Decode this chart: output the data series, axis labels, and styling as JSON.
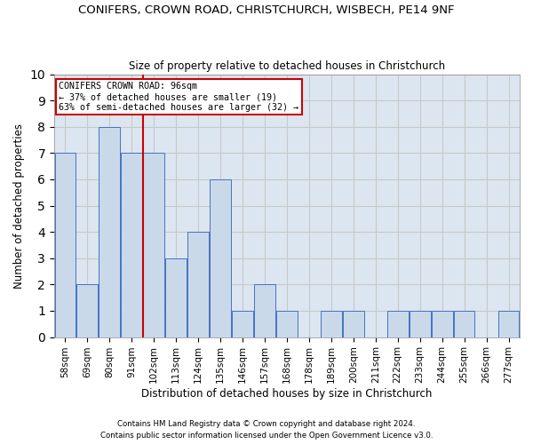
{
  "title1": "CONIFERS, CROWN ROAD, CHRISTCHURCH, WISBECH, PE14 9NF",
  "title2": "Size of property relative to detached houses in Christchurch",
  "xlabel": "Distribution of detached houses by size in Christchurch",
  "ylabel": "Number of detached properties",
  "categories": [
    "58sqm",
    "69sqm",
    "80sqm",
    "91sqm",
    "102sqm",
    "113sqm",
    "124sqm",
    "135sqm",
    "146sqm",
    "157sqm",
    "168sqm",
    "178sqm",
    "189sqm",
    "200sqm",
    "211sqm",
    "222sqm",
    "233sqm",
    "244sqm",
    "255sqm",
    "266sqm",
    "277sqm"
  ],
  "values": [
    7,
    2,
    8,
    7,
    7,
    3,
    4,
    6,
    1,
    2,
    1,
    0,
    1,
    1,
    0,
    1,
    1,
    1,
    1,
    0,
    1
  ],
  "bar_color": "#c9d9ea",
  "bar_edge_color": "#4472c4",
  "vline_x": 3.5,
  "vline_color": "#cc0000",
  "annotation_text": "CONIFERS CROWN ROAD: 96sqm\n← 37% of detached houses are smaller (19)\n63% of semi-detached houses are larger (32) →",
  "annotation_box_color": "#ffffff",
  "annotation_box_edge": "#cc0000",
  "ylim": [
    0,
    10
  ],
  "yticks": [
    0,
    1,
    2,
    3,
    4,
    5,
    6,
    7,
    8,
    9,
    10
  ],
  "footer1": "Contains HM Land Registry data © Crown copyright and database right 2024.",
  "footer2": "Contains public sector information licensed under the Open Government Licence v3.0.",
  "grid_color": "#c8c8c8",
  "bg_color": "#dce6f1",
  "fig_width": 6.0,
  "fig_height": 5.0
}
